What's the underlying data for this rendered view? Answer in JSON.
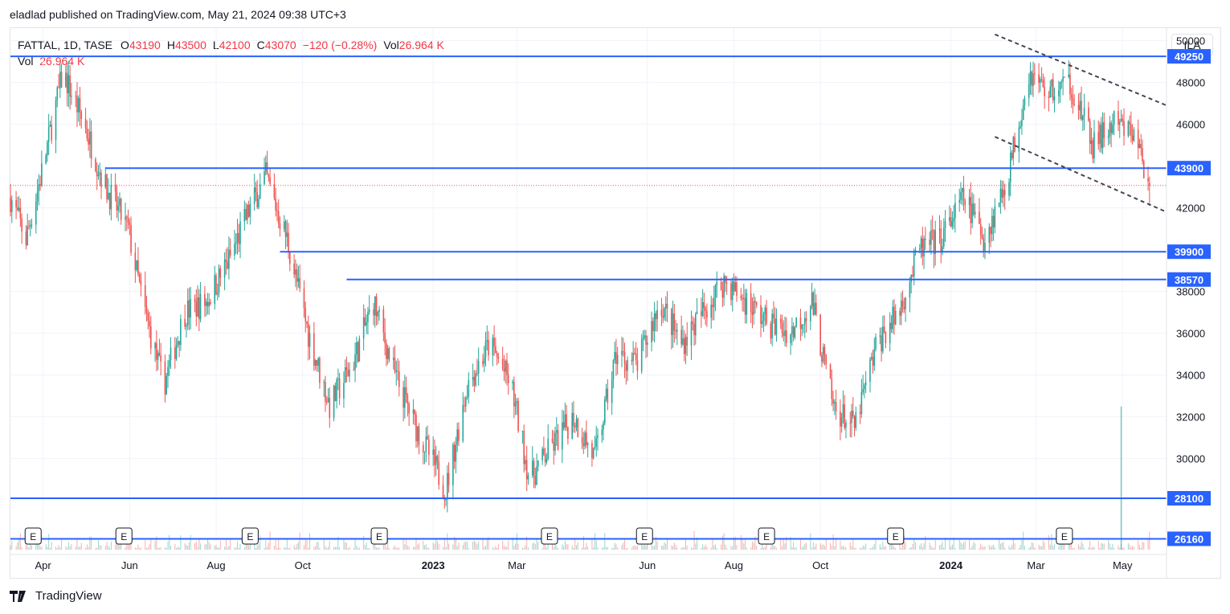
{
  "header": {
    "published": "eladlad published on TradingView.com, May 21, 2024 09:38 UTC+3"
  },
  "legend": {
    "symbol": "FATTAL, 1D, TASE",
    "o_label": "O",
    "o_value": "43190",
    "h_label": "H",
    "h_value": "43500",
    "l_label": "L",
    "l_value": "42100",
    "c_label": "C",
    "c_value": "43070",
    "change": "−120 (−0.28%)",
    "vol_label": "Vol",
    "vol_value": "26.964 K",
    "vol2_label": "Vol",
    "vol2_value": "26.964 K"
  },
  "currency_button": "ILA",
  "footer": {
    "brand": "TradingView"
  },
  "colors": {
    "up": "#26a69a",
    "down": "#ef5350",
    "level": "#2962ff",
    "text": "#131722",
    "grid": "#f0f3fa"
  },
  "chart_data": {
    "type": "candlestick",
    "ylim": [
      25600,
      50600
    ],
    "y_ticks": [
      30000,
      32000,
      34000,
      36000,
      38000,
      42000,
      46000,
      48000,
      50000
    ],
    "y_tick_labels": [
      "30000",
      "32000",
      "34000",
      "36000",
      "38000",
      "42000",
      "46000",
      "48000",
      "50000"
    ],
    "x_start": "2022-03-09",
    "x_end": "2024-06-01",
    "x_ticks": [
      {
        "date": "2022-04-01",
        "label": "Apr",
        "bold": false
      },
      {
        "date": "2022-06-01",
        "label": "Jun",
        "bold": false
      },
      {
        "date": "2022-08-01",
        "label": "Aug",
        "bold": false
      },
      {
        "date": "2022-10-01",
        "label": "Oct",
        "bold": false
      },
      {
        "date": "2023-01-01",
        "label": "2023",
        "bold": true
      },
      {
        "date": "2023-03-01",
        "label": "Mar",
        "bold": false
      },
      {
        "date": "2023-06-01",
        "label": "Jun",
        "bold": false
      },
      {
        "date": "2023-08-01",
        "label": "Aug",
        "bold": false
      },
      {
        "date": "2023-10-01",
        "label": "Oct",
        "bold": false
      },
      {
        "date": "2024-01-01",
        "label": "2024",
        "bold": true
      },
      {
        "date": "2024-03-01",
        "label": "Mar",
        "bold": false
      },
      {
        "date": "2024-05-01",
        "label": "May",
        "bold": false
      }
    ],
    "horizontal_levels": [
      {
        "price": 49250,
        "label": "49250",
        "from": "2022-03-09"
      },
      {
        "price": 43900,
        "label": "43900",
        "from": "2022-05-15"
      },
      {
        "price": 39900,
        "label": "39900",
        "from": "2022-09-15"
      },
      {
        "price": 38570,
        "label": "38570",
        "from": "2022-11-01"
      },
      {
        "price": 28100,
        "label": "28100",
        "from": "2022-03-09"
      },
      {
        "price": 26160,
        "label": "26160",
        "from": "2022-03-09"
      }
    ],
    "last_price": 43070,
    "channel_lines": [
      {
        "from_date": "2024-02-01",
        "from_price": 50300,
        "to_date": "2024-06-01",
        "to_price": 46900
      },
      {
        "from_date": "2024-02-01",
        "from_price": 45400,
        "to_date": "2024-06-01",
        "to_price": 41800
      }
    ],
    "earnings_dates": [
      "2022-03-25",
      "2022-05-28",
      "2022-08-25",
      "2022-11-24",
      "2023-03-24",
      "2023-05-30",
      "2023-08-24",
      "2023-11-23",
      "2024-03-21"
    ],
    "earnings_label": "E",
    "price_path": [
      {
        "date": "2022-03-09",
        "price": 42500
      },
      {
        "date": "2022-03-20",
        "price": 40500
      },
      {
        "date": "2022-04-01",
        "price": 44000
      },
      {
        "date": "2022-04-15",
        "price": 48500
      },
      {
        "date": "2022-04-30",
        "price": 46000
      },
      {
        "date": "2022-05-15",
        "price": 43000
      },
      {
        "date": "2022-05-31",
        "price": 41000
      },
      {
        "date": "2022-06-10",
        "price": 37500
      },
      {
        "date": "2022-06-25",
        "price": 33500
      },
      {
        "date": "2022-07-10",
        "price": 37000
      },
      {
        "date": "2022-07-25",
        "price": 37500
      },
      {
        "date": "2022-08-10",
        "price": 39500
      },
      {
        "date": "2022-08-25",
        "price": 42000
      },
      {
        "date": "2022-09-05",
        "price": 43500
      },
      {
        "date": "2022-09-20",
        "price": 40500
      },
      {
        "date": "2022-10-05",
        "price": 36000
      },
      {
        "date": "2022-10-20",
        "price": 32500
      },
      {
        "date": "2022-11-05",
        "price": 34500
      },
      {
        "date": "2022-11-20",
        "price": 37500
      },
      {
        "date": "2022-12-05",
        "price": 34000
      },
      {
        "date": "2022-12-20",
        "price": 31500
      },
      {
        "date": "2023-01-10",
        "price": 28500
      },
      {
        "date": "2023-01-25",
        "price": 33500
      },
      {
        "date": "2023-02-10",
        "price": 35500
      },
      {
        "date": "2023-02-25",
        "price": 33500
      },
      {
        "date": "2023-03-10",
        "price": 29000
      },
      {
        "date": "2023-03-25",
        "price": 30500
      },
      {
        "date": "2023-04-10",
        "price": 32000
      },
      {
        "date": "2023-04-25",
        "price": 30000
      },
      {
        "date": "2023-05-10",
        "price": 35000
      },
      {
        "date": "2023-05-25",
        "price": 34500
      },
      {
        "date": "2023-06-10",
        "price": 37500
      },
      {
        "date": "2023-06-25",
        "price": 35500
      },
      {
        "date": "2023-07-10",
        "price": 37000
      },
      {
        "date": "2023-07-25",
        "price": 38500
      },
      {
        "date": "2023-08-10",
        "price": 37500
      },
      {
        "date": "2023-08-25",
        "price": 36500
      },
      {
        "date": "2023-09-10",
        "price": 36000
      },
      {
        "date": "2023-09-25",
        "price": 37500
      },
      {
        "date": "2023-10-10",
        "price": 32500
      },
      {
        "date": "2023-10-25",
        "price": 31500
      },
      {
        "date": "2023-11-10",
        "price": 35500
      },
      {
        "date": "2023-11-25",
        "price": 37000
      },
      {
        "date": "2023-12-10",
        "price": 40000
      },
      {
        "date": "2023-12-25",
        "price": 40500
      },
      {
        "date": "2024-01-10",
        "price": 42500
      },
      {
        "date": "2024-01-25",
        "price": 40500
      },
      {
        "date": "2024-02-10",
        "price": 43500
      },
      {
        "date": "2024-02-25",
        "price": 48500
      },
      {
        "date": "2024-03-10",
        "price": 47500
      },
      {
        "date": "2024-03-25",
        "price": 48000
      },
      {
        "date": "2024-04-10",
        "price": 45000
      },
      {
        "date": "2024-04-25",
        "price": 46000
      },
      {
        "date": "2024-05-10",
        "price": 45500
      },
      {
        "date": "2024-05-20",
        "price": 43070
      }
    ],
    "volume_spike": {
      "date": "2024-04-30",
      "price_equivalent": 32500
    }
  }
}
